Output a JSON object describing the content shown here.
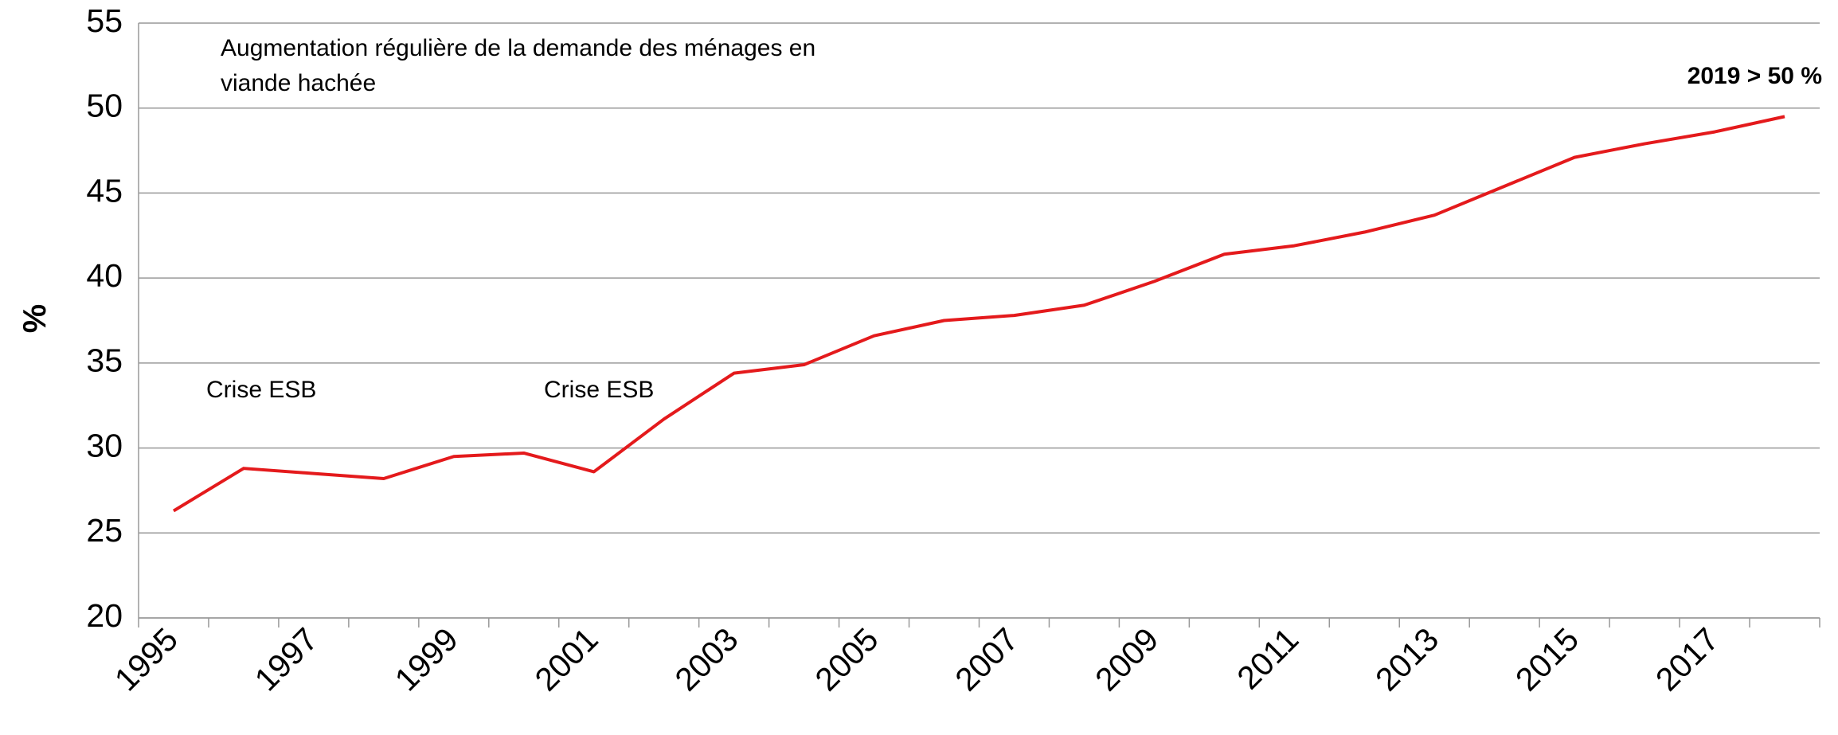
{
  "chart_data": {
    "type": "line",
    "y_label": "%",
    "annotations": [
      "Augmentation régulière de la demande des ménages en",
      "viande hachée",
      "Crise ESB",
      "Crise ESB",
      "2019 > 50 %"
    ],
    "categories": [
      "1995",
      null,
      "1997",
      null,
      "1999",
      null,
      "2001",
      null,
      "2003",
      null,
      "2005",
      null,
      "2007",
      null,
      "2009",
      null,
      "2011",
      null,
      "2013",
      null,
      "2015",
      null,
      "2017",
      null
    ],
    "series": [
      {
        "color": "#e41a1c",
        "values": [
          26.3,
          28.8,
          28.5,
          28.2,
          29.5,
          29.7,
          28.6,
          31.7,
          34.4,
          34.9,
          36.6,
          37.5,
          37.8,
          38.4,
          39.8,
          41.4,
          41.9,
          42.7,
          43.7,
          45.4,
          47.1,
          47.9,
          48.6,
          49.5
        ]
      }
    ],
    "ylim": [
      20,
      55
    ],
    "yticks": [
      20,
      25,
      30,
      35,
      40,
      45,
      50,
      55
    ],
    "grid": true
  }
}
